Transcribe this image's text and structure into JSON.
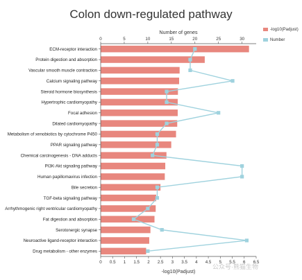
{
  "chart_data": {
    "type": "bar",
    "title": "Colon down-regulated pathway",
    "categories": [
      "ECM-receptor interaction",
      "Protein digestion and absorption",
      "Vascular smooth muscle contraction",
      "Calcium signaling pathway",
      "Steroid hormone biosynthesis",
      "Hypertrophic cardiomyopathy",
      "Focal adhesion",
      "Dilated cardiomyopathy",
      "Metabolism of xenobiotics by cytochrome P450",
      "PPAR signaling pathway",
      "Chemical carcinogenesis - DNA adducts",
      "PI3K-Akt signaling pathway",
      "Human papillomavirus infection",
      "Bile secretion",
      "TGF-beta signaling pathway",
      "Arrhythmogenic right ventricular cardiomyopathy",
      "Fat digestion and absorption",
      "Serotonergic synapse",
      "Neuroactive ligand-receptor interaction",
      "Drug metabolism - other enzymes"
    ],
    "series": [
      {
        "name": "-log10(Padjust)",
        "color": "#e8877e",
        "values": [
          6.2,
          4.35,
          3.3,
          3.28,
          3.23,
          3.22,
          3.22,
          3.2,
          3.15,
          2.95,
          2.75,
          2.7,
          2.68,
          2.5,
          2.32,
          2.3,
          2.25,
          2.08,
          2.03,
          1.9
        ]
      },
      {
        "name": "Number",
        "color": "#9fd2de",
        "values": [
          20,
          19,
          19,
          28,
          14,
          14,
          25,
          14,
          12,
          12,
          11,
          30,
          30,
          12,
          12,
          10,
          7,
          13,
          31,
          10
        ]
      }
    ],
    "xlabel": "-log10(Padjust)",
    "xlim": [
      0,
      6.5
    ],
    "xticks": [
      "0",
      "0.5",
      "1",
      "1.5",
      "2",
      "2.5",
      "3",
      "3.5",
      "4",
      "4.5",
      "5",
      "5.5",
      "6",
      "6.5"
    ],
    "x2label": "Number of genes",
    "x2lim": [
      0,
      33
    ],
    "x2ticks": [
      "0",
      "5",
      "10",
      "15",
      "20",
      "25",
      "30"
    ],
    "legend_position": "top-right",
    "grid": false
  },
  "watermark": "公众号·熊猫生物"
}
